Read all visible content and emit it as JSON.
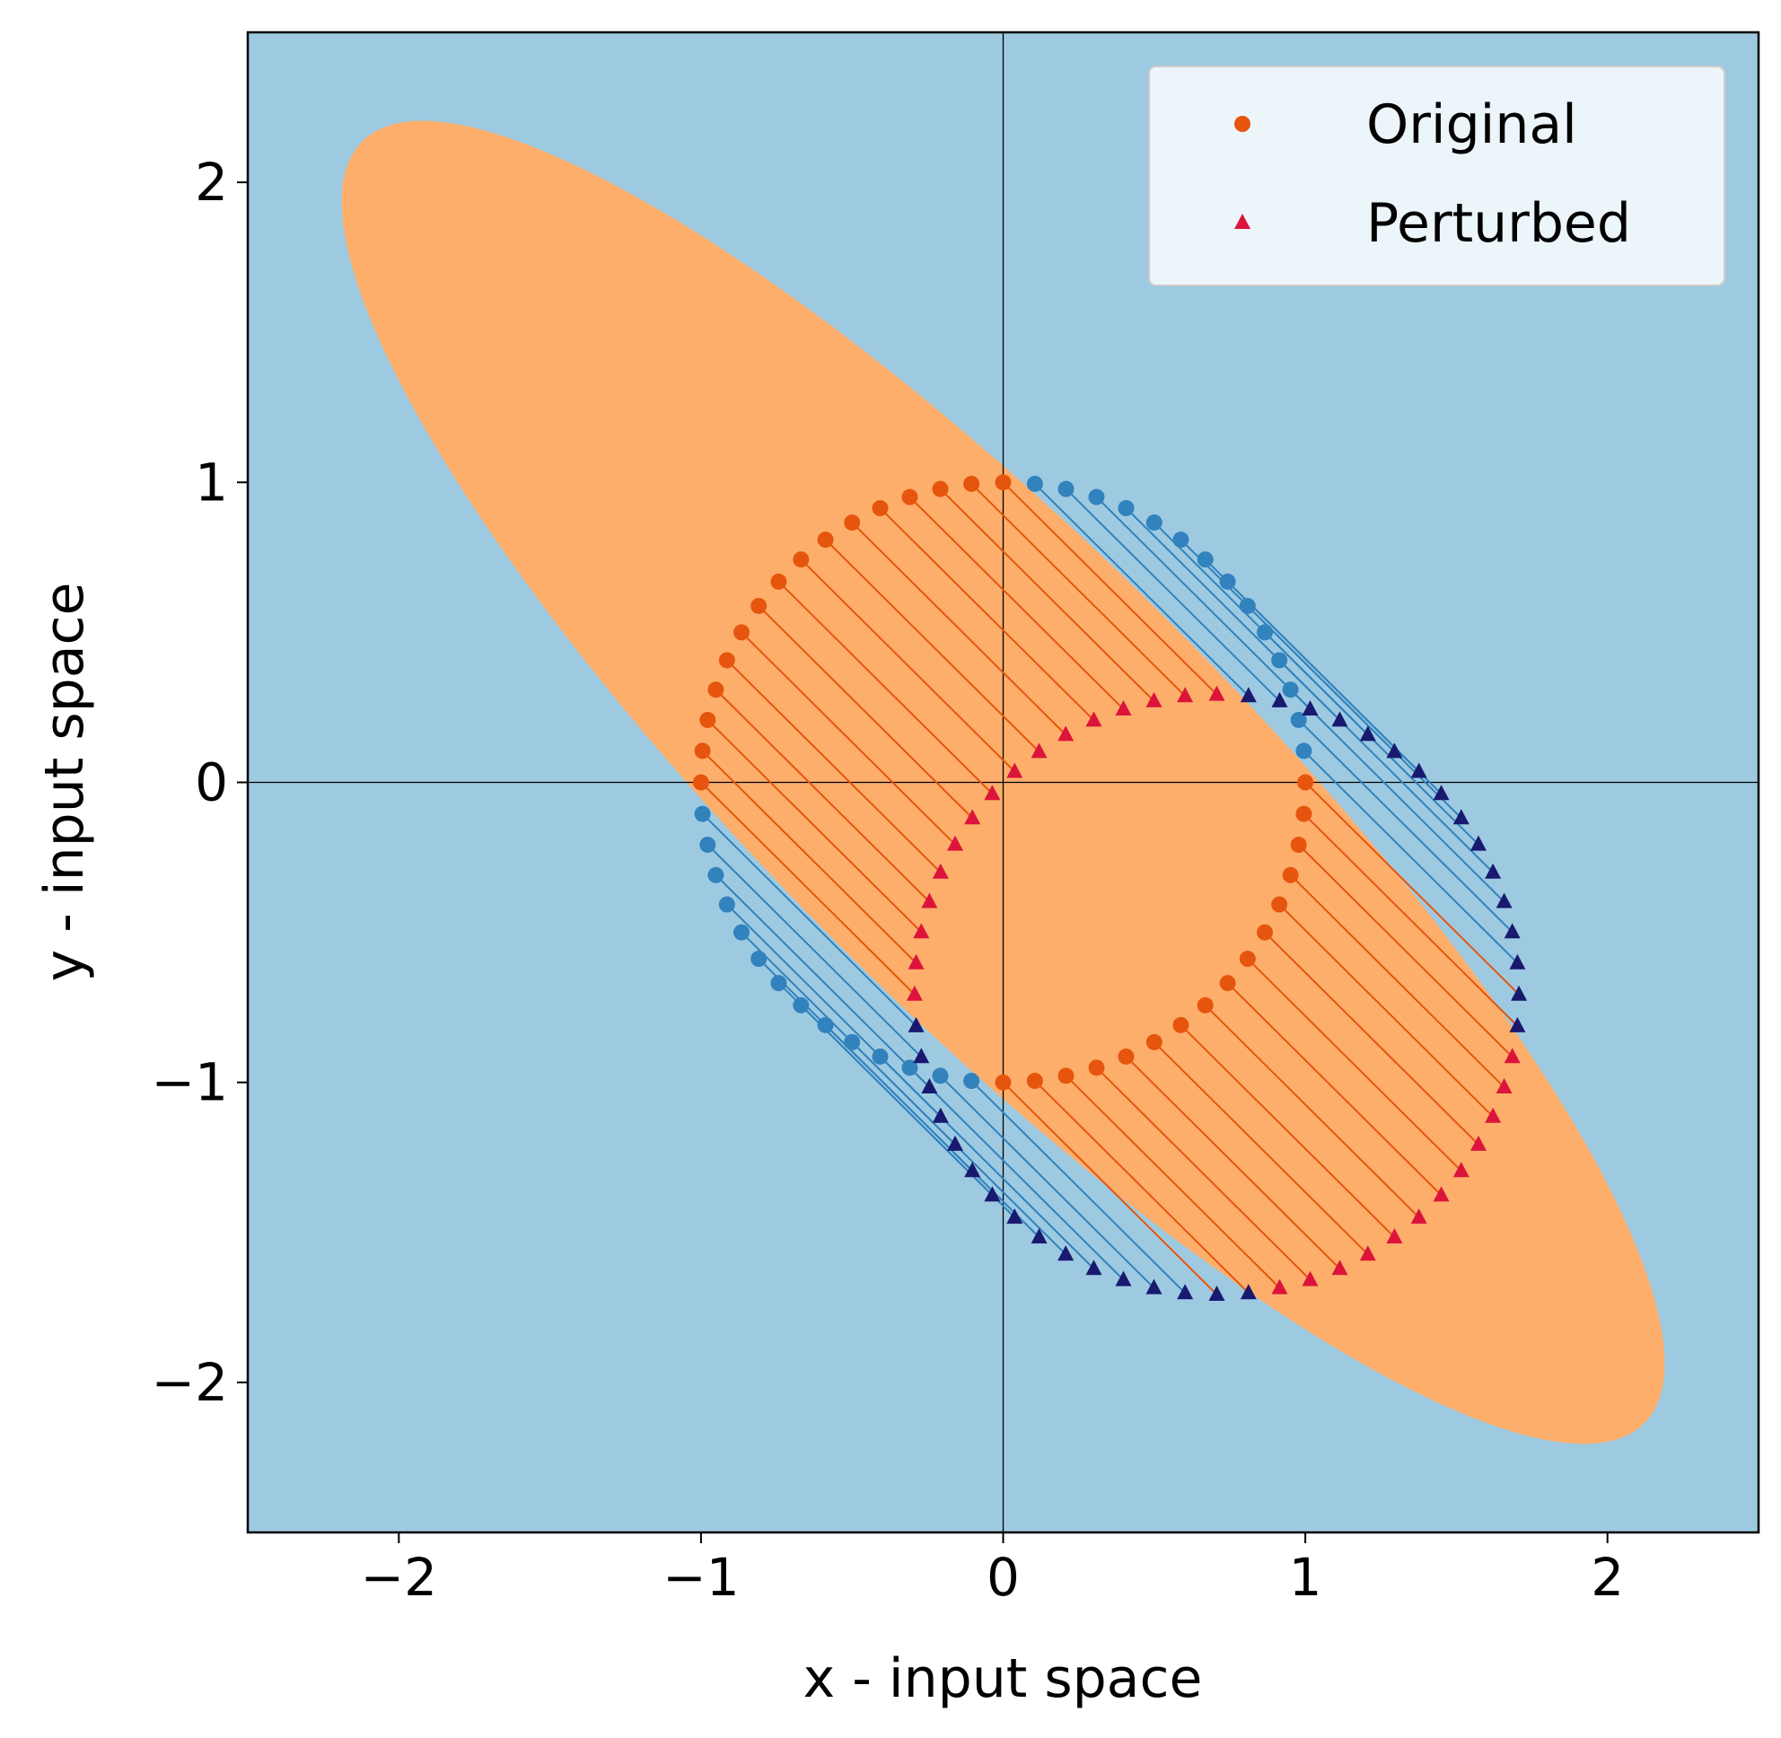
{
  "chart_data": {
    "type": "scatter",
    "xlabel": "x - input space",
    "ylabel": "y - input space",
    "xlim": [
      -2.5,
      2.5
    ],
    "ylim": [
      -2.5,
      2.5
    ],
    "xticks": [
      {
        "value": -2,
        "label": "−2"
      },
      {
        "value": -1,
        "label": "−1"
      },
      0,
      1,
      2
    ],
    "yticks": [
      {
        "value": -2,
        "label": "−2"
      },
      {
        "value": -1,
        "label": "−1"
      },
      0,
      1,
      2
    ],
    "background": "#9ecae1",
    "region": {
      "shape": "ellipse",
      "color": "#fdae6b",
      "cx": 0,
      "cy": 0,
      "rx": 3.0,
      "ry": 0.77,
      "angle": -45
    },
    "legend": "upper right",
    "series": [
      {
        "name": "Original",
        "marker": "circle",
        "color": "#e6550d",
        "outside_color": "#3182bd",
        "x": [
          1,
          0.995,
          0.978,
          0.951,
          0.914,
          0.866,
          0.809,
          0.743,
          0.669,
          0.588,
          0.5,
          0.407,
          0.309,
          0.208,
          0.105,
          0,
          -0.105,
          -0.208,
          -0.309,
          -0.407,
          -0.5,
          -0.588,
          -0.669,
          -0.743,
          -0.809,
          -0.866,
          -0.914,
          -0.951,
          -0.978,
          -0.995,
          -1,
          -0.995,
          -0.978,
          -0.951,
          -0.914,
          -0.866,
          -0.809,
          -0.743,
          -0.669,
          -0.588,
          -0.5,
          -0.407,
          -0.309,
          -0.208,
          -0.105,
          0,
          0.105,
          0.208,
          0.309,
          0.407,
          0.5,
          0.588,
          0.669,
          0.743,
          0.809,
          0.866,
          0.914,
          0.951,
          0.978,
          0.995
        ],
        "y": [
          0,
          0.105,
          0.208,
          0.309,
          0.407,
          0.5,
          0.588,
          0.669,
          0.743,
          0.809,
          0.866,
          0.914,
          0.951,
          0.978,
          0.995,
          1,
          0.995,
          0.978,
          0.951,
          0.914,
          0.866,
          0.809,
          0.743,
          0.669,
          0.588,
          0.5,
          0.407,
          0.309,
          0.208,
          0.105,
          0,
          -0.105,
          -0.208,
          -0.309,
          -0.407,
          -0.5,
          -0.588,
          -0.669,
          -0.743,
          -0.809,
          -0.866,
          -0.914,
          -0.951,
          -0.978,
          -0.995,
          -1,
          -0.995,
          -0.978,
          -0.951,
          -0.914,
          -0.866,
          -0.809,
          -0.743,
          -0.669,
          -0.588,
          -0.5,
          -0.407,
          -0.309,
          -0.208,
          -0.105
        ]
      },
      {
        "name": "Perturbed",
        "marker": "triangle",
        "color": "#dc143c",
        "outside_color": "#191970",
        "x": [
          1.707,
          1.702,
          1.685,
          1.658,
          1.621,
          1.573,
          1.516,
          1.45,
          1.376,
          1.295,
          1.207,
          1.114,
          1.016,
          0.915,
          0.812,
          0.707,
          0.602,
          0.499,
          0.398,
          0.3,
          0.207,
          0.119,
          0.038,
          -0.036,
          -0.102,
          -0.159,
          -0.207,
          -0.244,
          -0.271,
          -0.288,
          -0.293,
          -0.288,
          -0.271,
          -0.244,
          -0.207,
          -0.159,
          -0.102,
          -0.036,
          0.038,
          0.119,
          0.207,
          0.3,
          0.398,
          0.499,
          0.602,
          0.707,
          0.812,
          0.915,
          1.016,
          1.114,
          1.207,
          1.295,
          1.376,
          1.45,
          1.516,
          1.573,
          1.621,
          1.658,
          1.685,
          1.702
        ],
        "y": [
          -0.707,
          -0.602,
          -0.499,
          -0.398,
          -0.3,
          -0.207,
          -0.119,
          -0.038,
          0.036,
          0.102,
          0.159,
          0.207,
          0.244,
          0.271,
          0.288,
          0.293,
          0.288,
          0.271,
          0.244,
          0.207,
          0.159,
          0.102,
          0.036,
          -0.038,
          -0.119,
          -0.207,
          -0.3,
          -0.398,
          -0.499,
          -0.602,
          -0.707,
          -0.812,
          -0.915,
          -1.016,
          -1.114,
          -1.207,
          -1.295,
          -1.376,
          -1.45,
          -1.516,
          -1.573,
          -1.621,
          -1.658,
          -1.685,
          -1.702,
          -1.707,
          -1.702,
          -1.685,
          -1.658,
          -1.621,
          -1.573,
          -1.516,
          -1.45,
          -1.376,
          -1.295,
          -1.207,
          -1.114,
          -1.016,
          -0.915,
          -0.812
        ]
      }
    ]
  }
}
